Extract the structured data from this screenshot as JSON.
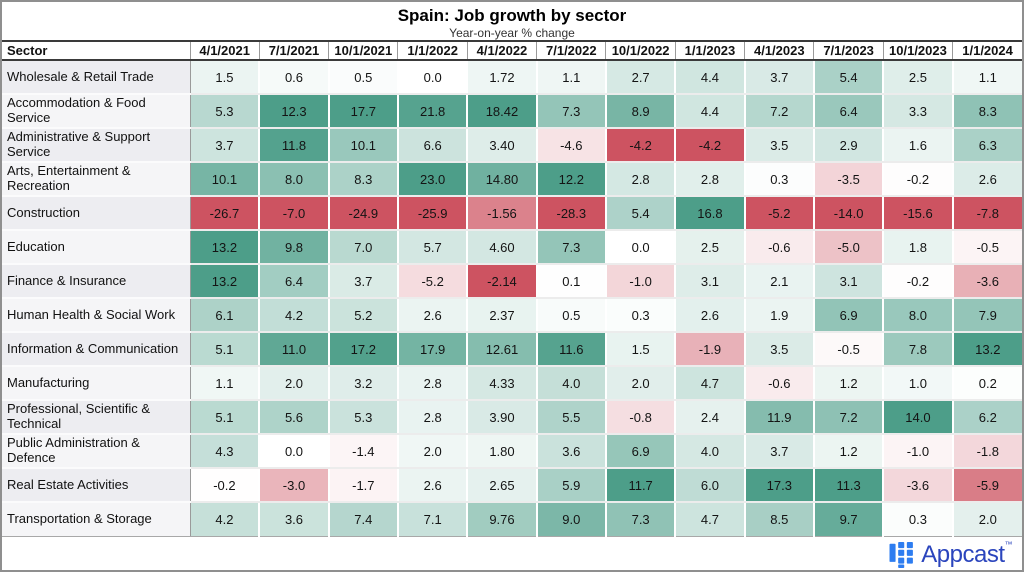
{
  "page": {
    "title": "Spain: Job growth by sector",
    "subtitle": "Year-on-year % change"
  },
  "chart_data": {
    "type": "heatmap",
    "title": "Spain: Job growth by sector",
    "subtitle": "Year-on-year % change",
    "row_header_label": "Sector",
    "columns": [
      "4/1/2021",
      "7/1/2021",
      "10/1/2021",
      "1/1/2022",
      "4/1/2022",
      "7/1/2022",
      "10/1/2022",
      "1/1/2023",
      "4/1/2023",
      "7/1/2023",
      "10/1/2023",
      "1/1/2024"
    ],
    "rows": [
      {
        "sector": "Wholesale & Retail Trade",
        "values": [
          "1.5",
          "0.6",
          "0.5",
          "0.0",
          "1.72",
          "1.1",
          "2.7",
          "4.4",
          "3.7",
          "5.4",
          "2.5",
          "1.1"
        ]
      },
      {
        "sector": "Accommodation & Food Service",
        "values": [
          "5.3",
          "12.3",
          "17.7",
          "21.8",
          "18.42",
          "7.3",
          "8.9",
          "4.4",
          "7.2",
          "6.4",
          "3.3",
          "8.3"
        ]
      },
      {
        "sector": "Administrative & Support Service",
        "values": [
          "3.7",
          "11.8",
          "10.1",
          "6.6",
          "3.40",
          "-4.6",
          "-4.2",
          "-4.2",
          "3.5",
          "2.9",
          "1.6",
          "6.3"
        ]
      },
      {
        "sector": "Arts, Entertainment & Recreation",
        "values": [
          "10.1",
          "8.0",
          "8.3",
          "23.0",
          "14.80",
          "12.2",
          "2.8",
          "2.8",
          "0.3",
          "-3.5",
          "-0.2",
          "2.6"
        ]
      },
      {
        "sector": "Construction",
        "values": [
          "-26.7",
          "-7.0",
          "-24.9",
          "-25.9",
          "-1.56",
          "-28.3",
          "5.4",
          "16.8",
          "-5.2",
          "-14.0",
          "-15.6",
          "-7.8"
        ]
      },
      {
        "sector": "Education",
        "values": [
          "13.2",
          "9.8",
          "7.0",
          "5.7",
          "4.60",
          "7.3",
          "0.0",
          "2.5",
          "-0.6",
          "-5.0",
          "1.8",
          "-0.5"
        ]
      },
      {
        "sector": "Finance & Insurance",
        "values": [
          "13.2",
          "6.4",
          "3.7",
          "-5.2",
          "-2.14",
          "0.1",
          "-1.0",
          "3.1",
          "2.1",
          "3.1",
          "-0.2",
          "-3.6"
        ]
      },
      {
        "sector": "Human Health & Social Work",
        "values": [
          "6.1",
          "4.2",
          "5.2",
          "2.6",
          "2.37",
          "0.5",
          "0.3",
          "2.6",
          "1.9",
          "6.9",
          "8.0",
          "7.9"
        ]
      },
      {
        "sector": "Information & Communication",
        "values": [
          "5.1",
          "11.0",
          "17.2",
          "17.9",
          "12.61",
          "11.6",
          "1.5",
          "-1.9",
          "3.5",
          "-0.5",
          "7.8",
          "13.2"
        ]
      },
      {
        "sector": "Manufacturing",
        "values": [
          "1.1",
          "2.0",
          "3.2",
          "2.8",
          "4.33",
          "4.0",
          "2.0",
          "4.7",
          "-0.6",
          "1.2",
          "1.0",
          "0.2"
        ]
      },
      {
        "sector": "Professional, Scientific & Technical",
        "values": [
          "5.1",
          "5.6",
          "5.3",
          "2.8",
          "3.90",
          "5.5",
          "-0.8",
          "2.4",
          "11.9",
          "7.2",
          "14.0",
          "6.2"
        ]
      },
      {
        "sector": "Public Administration & Defence",
        "values": [
          "4.3",
          "0.0",
          "-1.4",
          "2.0",
          "1.80",
          "3.6",
          "6.9",
          "4.0",
          "3.7",
          "1.2",
          "-1.0",
          "-1.8"
        ]
      },
      {
        "sector": "Real Estate Activities",
        "values": [
          "-0.2",
          "-3.0",
          "-1.7",
          "2.6",
          "2.65",
          "5.9",
          "11.7",
          "6.0",
          "17.3",
          "11.3",
          "-3.6",
          "-5.9"
        ]
      },
      {
        "sector": "Transportation & Storage",
        "values": [
          "4.2",
          "3.6",
          "7.4",
          "7.1",
          "9.76",
          "9.0",
          "7.3",
          "4.7",
          "8.5",
          "9.7",
          "0.3",
          "2.0"
        ]
      }
    ],
    "color_scale": {
      "positive_max": "#4D9E89",
      "negative_max": "#CD5361",
      "neutral": "#FFFFFF",
      "normalization": "per-column"
    },
    "layout": {
      "legend": "none",
      "grid": "on"
    }
  },
  "footer": {
    "logo_text": "Appcast",
    "trademark": "™",
    "logo_blue": "#2E7DF0",
    "logo_text_blue": "#2B45BD"
  }
}
